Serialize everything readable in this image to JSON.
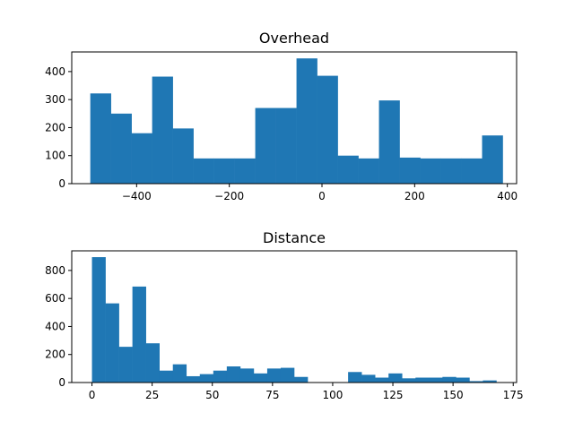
{
  "chart_data": [
    {
      "type": "bar",
      "title": "Overhead",
      "xlabel": "",
      "ylabel": "",
      "bar_color": "#1f77b4",
      "grid": false,
      "xlim": [
        -540,
        420
      ],
      "ylim": [
        0,
        470
      ],
      "xticks": [
        -400,
        -200,
        0,
        200,
        400
      ],
      "xtick_labels": [
        "−400",
        "−200",
        "0",
        "200",
        "400"
      ],
      "yticks": [
        0,
        100,
        200,
        300,
        400
      ],
      "ytick_labels": [
        "0",
        "100",
        "200",
        "300",
        "400"
      ],
      "bin_edges": [
        -500,
        -455.5,
        -411,
        -366.5,
        -322,
        -277.5,
        -233,
        -188.5,
        -144,
        -99.5,
        -55,
        -10.5,
        34,
        78.5,
        123,
        167.5,
        212,
        256.5,
        301,
        345.5,
        390
      ],
      "values": [
        322,
        250,
        180,
        382,
        197,
        90,
        90,
        90,
        270,
        270,
        447,
        385,
        100,
        90,
        297,
        93,
        90,
        90,
        90,
        172
      ]
    },
    {
      "type": "bar",
      "title": "Distance",
      "xlabel": "",
      "ylabel": "",
      "bar_color": "#1f77b4",
      "grid": false,
      "xlim": [
        -8.4,
        176.4
      ],
      "ylim": [
        0,
        940
      ],
      "xticks": [
        0,
        25,
        50,
        75,
        100,
        125,
        150,
        175
      ],
      "xtick_labels": [
        "0",
        "25",
        "50",
        "75",
        "100",
        "125",
        "150",
        "175"
      ],
      "yticks": [
        0,
        200,
        400,
        600,
        800
      ],
      "ytick_labels": [
        "0",
        "200",
        "400",
        "600",
        "800"
      ],
      "bin_edges": [
        0,
        5.6,
        11.2,
        16.8,
        22.4,
        28,
        33.6,
        39.2,
        44.8,
        50.4,
        56,
        61.6,
        67.2,
        72.8,
        78.4,
        84,
        89.6,
        95.2,
        100.8,
        106.4,
        112,
        117.6,
        123.2,
        128.8,
        134.4,
        140,
        145.6,
        151.2,
        156.8,
        162.4,
        168
      ],
      "values": [
        895,
        565,
        255,
        685,
        280,
        85,
        130,
        45,
        60,
        85,
        115,
        100,
        65,
        100,
        105,
        40,
        0,
        0,
        0,
        75,
        55,
        35,
        65,
        30,
        35,
        35,
        40,
        35,
        10,
        15
      ]
    }
  ]
}
